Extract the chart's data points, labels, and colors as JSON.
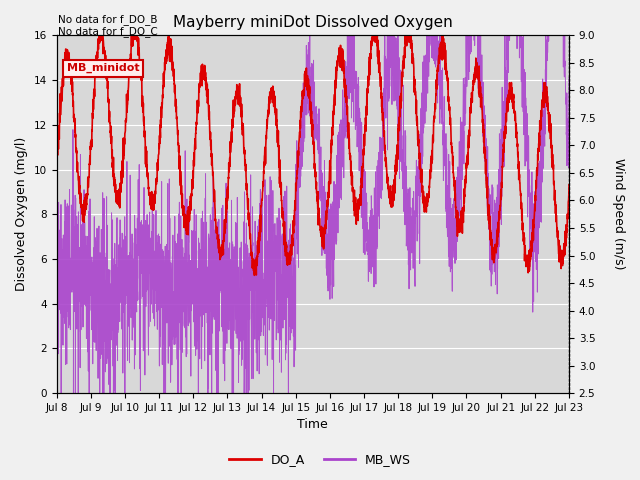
{
  "title": "Mayberry miniDot Dissolved Oxygen",
  "xlabel": "Time",
  "ylabel_left": "Dissolved Oxygen (mg/l)",
  "ylabel_right": "Wind Speed (m/s)",
  "annotations": [
    "No data for f_DO_B",
    "No data for f_DO_C"
  ],
  "legend_label_box": "MB_minidot",
  "legend_entries": [
    "DO_A",
    "MB_WS"
  ],
  "do_color": "#dd0000",
  "ws_color": "#aa44cc",
  "box_color": "#cc0000",
  "box_bg": "#ffeeee",
  "ylim_left": [
    0,
    16
  ],
  "ylim_right": [
    2.5,
    9.0
  ],
  "yticks_left": [
    0,
    2,
    4,
    6,
    8,
    10,
    12,
    14,
    16
  ],
  "yticks_right": [
    2.5,
    3.0,
    3.5,
    4.0,
    4.5,
    5.0,
    5.5,
    6.0,
    6.5,
    7.0,
    7.5,
    8.0,
    8.5,
    9.0
  ],
  "x_days": [
    "Jul 8",
    "Jul 9",
    "Jul 10",
    "Jul 11",
    "Jul 12",
    "Jul 13",
    "Jul 14",
    "Jul 15",
    "Jul 16",
    "Jul 17",
    "Jul 18",
    "Jul 19",
    "Jul 20",
    "Jul 21",
    "Jul 22",
    "Jul 23"
  ],
  "n_points": 3000,
  "plot_bg": "#d8d8d8",
  "fig_bg": "#f0f0f0",
  "grid_color": "#ffffff",
  "title_fontsize": 11,
  "label_fontsize": 9,
  "tick_fontsize": 7.5
}
